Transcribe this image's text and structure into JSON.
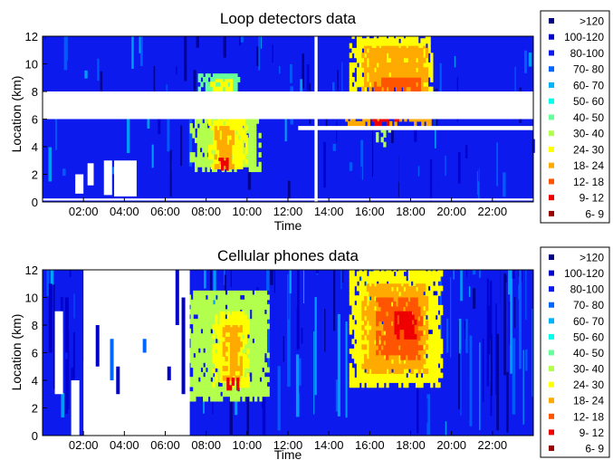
{
  "chart_data": [
    {
      "type": "heatmap",
      "title": "Loop detectors data",
      "xlabel": "Time",
      "ylabel": "Location (km)",
      "xlim": [
        0,
        24
      ],
      "ylim": [
        0,
        12
      ],
      "x_ticks": [
        "02:00",
        "04:00",
        "06:00",
        "08:00",
        "10:00",
        "12:00",
        "14:00",
        "16:00",
        "18:00",
        "20:00",
        "22:00"
      ],
      "y_ticks": [
        "0",
        "2",
        "4",
        "6",
        "8",
        "10",
        "12"
      ],
      "background_speed_class": "80-100",
      "missing_data": [
        {
          "t0": 0,
          "t1": 24,
          "y0": 6,
          "y1": 8
        },
        {
          "t0": 12.5,
          "t1": 24,
          "y0": 5.2,
          "y1": 5.5
        },
        {
          "t0": 13.3,
          "t1": 13.45,
          "y0": 0,
          "y1": 12
        },
        {
          "t0": 0,
          "t1": 24,
          "y0": 0.1,
          "y1": 0.25
        },
        {
          "t0": 2.2,
          "t1": 2.5,
          "y0": 1.2,
          "y1": 2.8
        },
        {
          "t0": 3.0,
          "t1": 3.4,
          "y0": 0.5,
          "y1": 3
        },
        {
          "t0": 3.5,
          "t1": 4.6,
          "y0": 0.4,
          "y1": 3
        },
        {
          "t0": 1.6,
          "t1": 2.0,
          "y0": 0.6,
          "y1": 2
        }
      ],
      "congestion_regions": [
        {
          "t0": 7.2,
          "t1": 10.6,
          "y0": 2.2,
          "y1": 6,
          "speed_class": "30-40"
        },
        {
          "t0": 8.1,
          "t1": 10.0,
          "y0": 2.4,
          "y1": 6,
          "speed_class": "24-30"
        },
        {
          "t0": 8.4,
          "t1": 9.3,
          "y0": 2.4,
          "y1": 5.5,
          "speed_class": "18-24"
        },
        {
          "t0": 8.6,
          "t1": 9.0,
          "y0": 2.3,
          "y1": 3.2,
          "speed_class": "9-12"
        },
        {
          "t0": 7.6,
          "t1": 9.6,
          "y0": 8,
          "y1": 9.3,
          "speed_class": "40-50"
        },
        {
          "t0": 8.2,
          "t1": 9.2,
          "y0": 8,
          "y1": 8.9,
          "speed_class": "24-30"
        },
        {
          "t0": 15.0,
          "t1": 19.0,
          "y0": 8,
          "y1": 12,
          "speed_class": "24-30"
        },
        {
          "t0": 15.6,
          "t1": 18.8,
          "y0": 8,
          "y1": 11.3,
          "speed_class": "18-24"
        },
        {
          "t0": 16.2,
          "t1": 18.4,
          "y0": 8,
          "y1": 9,
          "speed_class": "12-18"
        },
        {
          "t0": 14.8,
          "t1": 18.9,
          "y0": 5.5,
          "y1": 6,
          "speed_class": "18-24"
        },
        {
          "t0": 16.1,
          "t1": 17.4,
          "y0": 5.5,
          "y1": 6,
          "speed_class": "9-12"
        },
        {
          "t0": 16.3,
          "t1": 17.0,
          "y0": 4.0,
          "y1": 5.2,
          "speed_class": "30-40"
        }
      ]
    },
    {
      "type": "heatmap",
      "title": "Cellular phones data",
      "xlabel": "Time",
      "ylabel": "Location (km)",
      "xlim": [
        0,
        24
      ],
      "ylim": [
        0,
        12
      ],
      "x_ticks": [
        "02:00",
        "04:00",
        "06:00",
        "08:00",
        "10:00",
        "12:00",
        "14:00",
        "16:00",
        "18:00",
        "20:00",
        "22:00"
      ],
      "y_ticks": [
        "0",
        "2",
        "4",
        "6",
        "8",
        "10",
        "12"
      ],
      "background_speed_class": "80-100",
      "missing_data": [
        {
          "t0": 2.0,
          "t1": 7.2,
          "y0": 0,
          "y1": 12
        },
        {
          "t0": 0.6,
          "t1": 1.0,
          "y0": 3,
          "y1": 9
        },
        {
          "t0": 1.4,
          "t1": 1.8,
          "y0": 0,
          "y1": 4
        }
      ],
      "congestion_regions": [
        {
          "t0": 7.0,
          "t1": 11.0,
          "y0": 2.5,
          "y1": 10.5,
          "speed_class": "30-40"
        },
        {
          "t0": 8.3,
          "t1": 10.0,
          "y0": 3.5,
          "y1": 9.0,
          "speed_class": "24-30"
        },
        {
          "t0": 8.8,
          "t1": 9.7,
          "y0": 4.0,
          "y1": 8.0,
          "speed_class": "18-24"
        },
        {
          "t0": 9.0,
          "t1": 9.5,
          "y0": 3.3,
          "y1": 4.2,
          "speed_class": "9-12"
        },
        {
          "t0": 15.0,
          "t1": 19.5,
          "y0": 3.5,
          "y1": 12,
          "speed_class": "24-30"
        },
        {
          "t0": 15.6,
          "t1": 18.8,
          "y0": 4.5,
          "y1": 11.0,
          "speed_class": "18-24"
        },
        {
          "t0": 16.3,
          "t1": 18.5,
          "y0": 5.5,
          "y1": 10.0,
          "speed_class": "12-18"
        },
        {
          "t0": 17.2,
          "t1": 18.2,
          "y0": 7.0,
          "y1": 9.0,
          "speed_class": "9-12"
        }
      ]
    }
  ],
  "legend": {
    "entries": [
      {
        "label": ">120",
        "color": "#000080"
      },
      {
        "label": "100-120",
        "color": "#0000c8"
      },
      {
        "label": "80-100",
        "color": "#0d1aee"
      },
      {
        "label": "70- 80",
        "color": "#0066ff"
      },
      {
        "label": "60- 70",
        "color": "#00b3ff"
      },
      {
        "label": "50- 60",
        "color": "#00ffea"
      },
      {
        "label": "40- 50",
        "color": "#66ff99"
      },
      {
        "label": "30- 40",
        "color": "#b3ff4d"
      },
      {
        "label": "24- 30",
        "color": "#ffff00"
      },
      {
        "label": "18- 24",
        "color": "#ffaa00"
      },
      {
        "label": "12- 18",
        "color": "#ff5500"
      },
      {
        "label": "9- 12",
        "color": "#ee0000"
      },
      {
        "label": "6- 9",
        "color": "#990000"
      }
    ],
    "class_colors": {
      ">120": "#000080",
      "100-120": "#0000c8",
      "80-100": "#0d1aee",
      "70-80": "#0066ff",
      "60-70": "#00b3ff",
      "50-60": "#00ffea",
      "40-50": "#66ff99",
      "30-40": "#b3ff4d",
      "24-30": "#ffff00",
      "18-24": "#ffaa00",
      "12-18": "#ff5500",
      "9-12": "#ee0000",
      "6-9": "#990000"
    }
  }
}
